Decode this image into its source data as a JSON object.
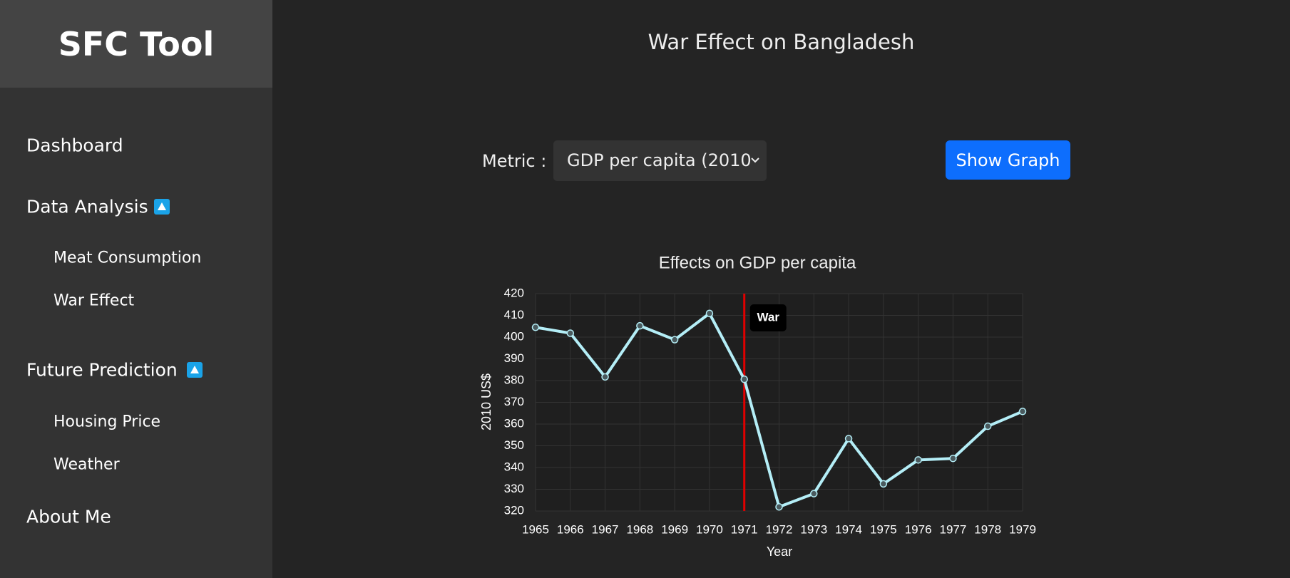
{
  "sidebar": {
    "brand": "SFC Tool",
    "items": [
      "Dashboard",
      "Data Analysis",
      "Meat Consumption",
      "War Effect",
      "Future Prediction",
      "Housing Price",
      "Weather",
      "About Me"
    ]
  },
  "header": {
    "title": "War Effect on Bangladesh"
  },
  "controls": {
    "metric_label": "Metric :",
    "metric_value": "GDP per capita (2010",
    "button": "Show Graph"
  },
  "chart_data": {
    "type": "line",
    "title": "Effects on GDP per capita",
    "x_label": "Year",
    "y_label": "2010 US$",
    "x": [
      1965,
      1966,
      1967,
      1968,
      1969,
      1970,
      1971,
      1972,
      1973,
      1974,
      1975,
      1976,
      1977,
      1978,
      1979
    ],
    "values": [
      404.5,
      401.8,
      381.7,
      405.2,
      398.8,
      410.9,
      380.6,
      321.9,
      328.0,
      353.3,
      332.5,
      343.5,
      344.2,
      359.0,
      365.8
    ],
    "color": "#b4eef7",
    "xlim": [
      1965,
      1979
    ],
    "xticks": [
      1965,
      1966,
      1967,
      1968,
      1969,
      1970,
      1971,
      1972,
      1973,
      1974,
      1975,
      1976,
      1977,
      1978,
      1979
    ],
    "ylim": [
      320,
      420
    ],
    "yticks": [
      320,
      330,
      340,
      350,
      360,
      370,
      380,
      390,
      400,
      410,
      420
    ],
    "grid": true,
    "annotations": [
      {
        "x": 1971,
        "label": "War",
        "color": "#e00000"
      }
    ]
  }
}
